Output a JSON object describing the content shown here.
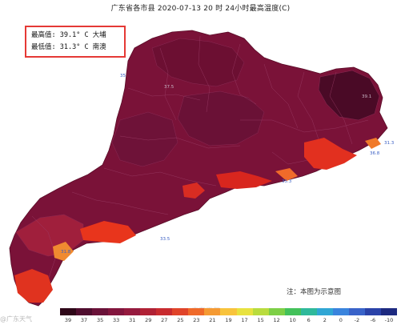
{
  "title": "广东省各市县 2020-07-13 20 时 24小时最高温度(C)",
  "stats": {
    "max_line": "最高值: 39.1° C 大埔",
    "min_line": "最低值: 31.3° C 南澳"
  },
  "note": "注：本图为示意图",
  "watermark": "@广东天气",
  "watermark_center": "@广东天气",
  "legend": {
    "ticks": [
      "39",
      "37",
      "35",
      "33",
      "31",
      "29",
      "27",
      "25",
      "23",
      "21",
      "19",
      "17",
      "15",
      "12",
      "10",
      "6",
      "2",
      "0",
      "-2",
      "-6",
      "-10"
    ],
    "colors": [
      "#2e0718",
      "#4f0d2e",
      "#6a1239",
      "#82153d",
      "#951a3e",
      "#b02135",
      "#c82b2f",
      "#e0442a",
      "#ef6a2a",
      "#f59a33",
      "#f8c33c",
      "#e8e23f",
      "#b9dc3e",
      "#7dcf46",
      "#43c15a",
      "#2fb99b",
      "#30a6d4",
      "#3a84dd",
      "#3963c9",
      "#2a42a8",
      "#1d2a80"
    ]
  },
  "point_labels": [
    "39.1",
    "31.3",
    "35",
    "37.5",
    "36.8",
    "35.3",
    "31.8",
    "33.5"
  ]
}
